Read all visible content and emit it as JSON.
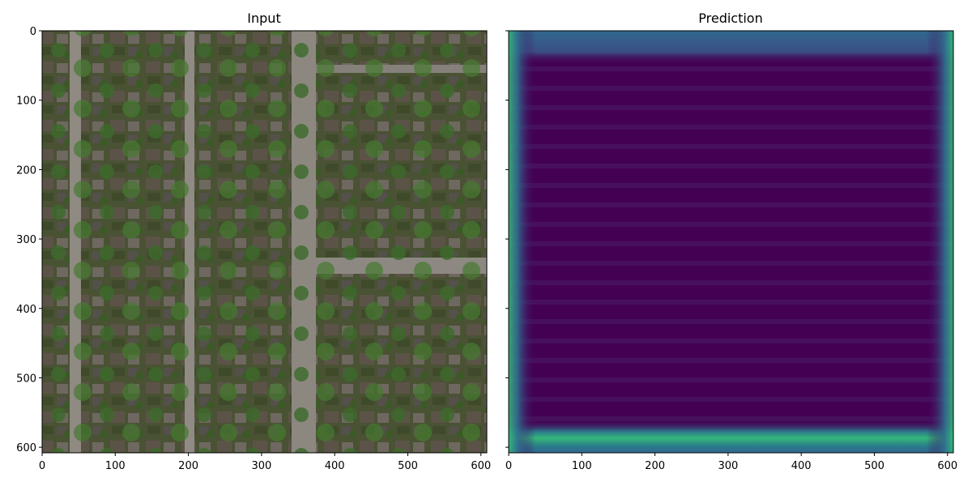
{
  "chart_data": [
    {
      "type": "heatmap",
      "title": "Input",
      "content": "aerial-image",
      "xlim": [
        0,
        608
      ],
      "ylim": [
        608,
        0
      ],
      "xticks": [
        0,
        100,
        200,
        300,
        400,
        500,
        600
      ],
      "yticks": [
        0,
        100,
        200,
        300,
        400,
        500,
        600
      ],
      "show_ytick_labels": true
    },
    {
      "type": "heatmap",
      "title": "Prediction",
      "colormap": "viridis",
      "colors": {
        "low": "#440154",
        "mid": "#31688e",
        "high": "#35b779"
      },
      "xlim": [
        0,
        608
      ],
      "ylim": [
        608,
        0
      ],
      "xticks": [
        0,
        100,
        200,
        300,
        400,
        500,
        600
      ],
      "yticks": [
        0,
        100,
        200,
        300,
        400,
        500,
        600
      ],
      "show_ytick_labels": false
    }
  ]
}
